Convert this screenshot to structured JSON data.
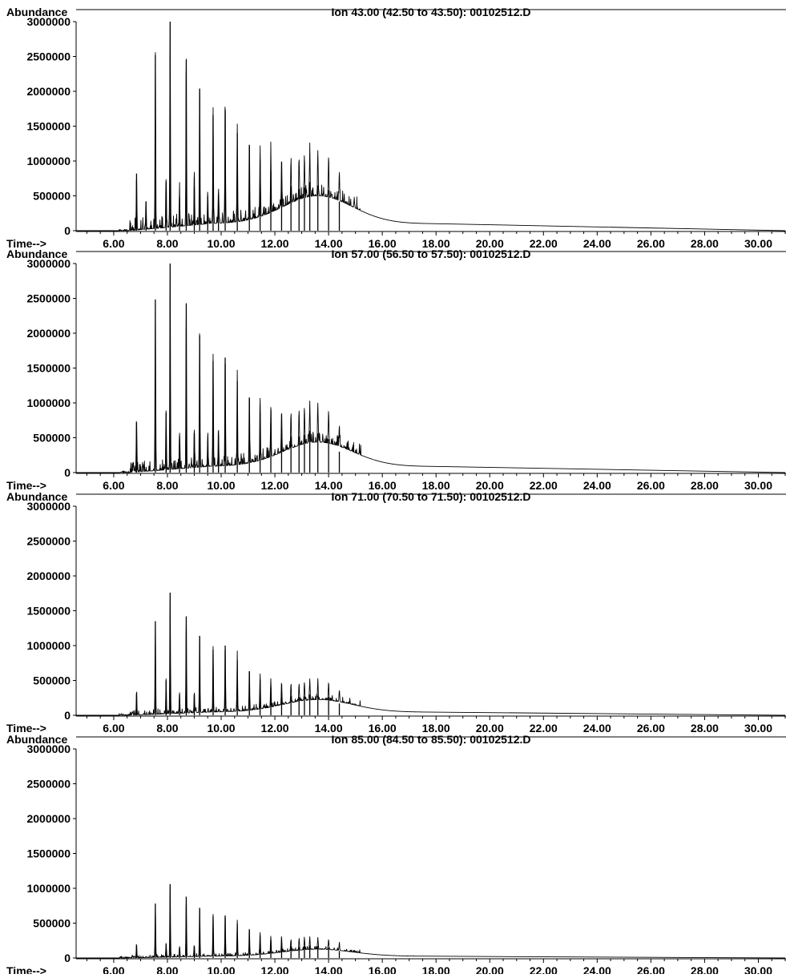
{
  "chart_data": [
    {
      "type": "line",
      "title": "Ion  43.00 (42.50 to 43.50): 00102512.D",
      "ylabel": "Abundance",
      "xlabel": "Time-->",
      "xlim": [
        4.6,
        31.0
      ],
      "ylim": [
        0,
        3000000
      ],
      "x_ticks": [
        "6.00",
        "8.00",
        "10.00",
        "12.00",
        "14.00",
        "16.00",
        "18.00",
        "20.00",
        "22.00",
        "24.00",
        "26.00",
        "28.00",
        "30.00"
      ],
      "y_ticks": [
        "0",
        "500000",
        "1000000",
        "1500000",
        "2000000",
        "2500000",
        "3000000"
      ],
      "peak_scale": 1.0,
      "peaks": [
        [
          6.85,
          820000
        ],
        [
          7.2,
          420000
        ],
        [
          7.55,
          2520000
        ],
        [
          7.95,
          700000
        ],
        [
          8.1,
          3000000
        ],
        [
          8.45,
          480000
        ],
        [
          8.7,
          2450000
        ],
        [
          9.0,
          620000
        ],
        [
          9.2,
          2040000
        ],
        [
          9.5,
          480000
        ],
        [
          9.7,
          1660000
        ],
        [
          9.9,
          500000
        ],
        [
          10.15,
          1740000
        ],
        [
          10.6,
          1400000
        ],
        [
          11.05,
          1210000
        ],
        [
          11.45,
          1020000
        ],
        [
          11.85,
          860000
        ],
        [
          12.25,
          740000
        ],
        [
          12.6,
          640000
        ],
        [
          12.9,
          600000
        ],
        [
          13.1,
          620000
        ],
        [
          13.3,
          700000
        ],
        [
          13.6,
          650000
        ],
        [
          14.0,
          580000
        ],
        [
          14.4,
          420000
        ]
      ],
      "baseline": {
        "center": 13.6,
        "width": 1.3,
        "height": 400000
      }
    },
    {
      "type": "line",
      "title": "Ion  57.00 (56.50 to 57.50): 00102512.D",
      "ylabel": "Abundance",
      "xlabel": "Time-->",
      "xlim": [
        4.6,
        31.0
      ],
      "ylim": [
        0,
        3000000
      ],
      "x_ticks": [
        "6.00",
        "8.00",
        "10.00",
        "12.00",
        "14.00",
        "16.00",
        "18.00",
        "20.00",
        "22.00",
        "24.00",
        "26.00",
        "28.00",
        "30.00"
      ],
      "y_ticks": [
        "0",
        "500000",
        "1000000",
        "1500000",
        "2000000",
        "2500000",
        "3000000"
      ],
      "peak_scale": 1.0,
      "peaks": [
        [
          6.85,
          720000
        ],
        [
          7.55,
          2480000
        ],
        [
          7.95,
          860000
        ],
        [
          8.1,
          3000000
        ],
        [
          8.45,
          520000
        ],
        [
          8.7,
          2430000
        ],
        [
          9.0,
          560000
        ],
        [
          9.2,
          1970000
        ],
        [
          9.5,
          440000
        ],
        [
          9.7,
          1600000
        ],
        [
          9.9,
          540000
        ],
        [
          10.15,
          1650000
        ],
        [
          10.6,
          1310000
        ],
        [
          11.05,
          1060000
        ],
        [
          11.45,
          870000
        ],
        [
          11.85,
          710000
        ],
        [
          12.25,
          620000
        ],
        [
          12.6,
          520000
        ],
        [
          12.9,
          520000
        ],
        [
          13.1,
          540000
        ],
        [
          13.3,
          600000
        ],
        [
          13.6,
          560000
        ],
        [
          14.0,
          480000
        ],
        [
          14.4,
          300000
        ]
      ],
      "baseline": {
        "center": 13.6,
        "width": 1.3,
        "height": 350000
      }
    },
    {
      "type": "line",
      "title": "Ion  71.00 (70.50 to 71.50): 00102512.D",
      "ylabel": "Abundance",
      "xlabel": "Time-->",
      "xlim": [
        4.6,
        31.0
      ],
      "ylim": [
        0,
        3000000
      ],
      "x_ticks": [
        "6.00",
        "8.00",
        "10.00",
        "12.00",
        "14.00",
        "16.00",
        "18.00",
        "20.00",
        "22.00",
        "24.00",
        "26.00",
        "28.00",
        "30.00"
      ],
      "y_ticks": [
        "0",
        "500000",
        "1000000",
        "1500000",
        "2000000",
        "2500000",
        "3000000"
      ],
      "peak_scale": 1.0,
      "peaks": [
        [
          6.85,
          320000
        ],
        [
          7.55,
          1350000
        ],
        [
          7.95,
          500000
        ],
        [
          8.1,
          1760000
        ],
        [
          8.45,
          300000
        ],
        [
          8.7,
          1420000
        ],
        [
          9.0,
          300000
        ],
        [
          9.2,
          1140000
        ],
        [
          9.7,
          940000
        ],
        [
          10.15,
          1000000
        ],
        [
          10.6,
          790000
        ],
        [
          11.05,
          630000
        ],
        [
          11.45,
          510000
        ],
        [
          11.85,
          400000
        ],
        [
          12.25,
          330000
        ],
        [
          12.6,
          280000
        ],
        [
          12.9,
          260000
        ],
        [
          13.1,
          270000
        ],
        [
          13.3,
          300000
        ],
        [
          13.6,
          280000
        ],
        [
          14.0,
          260000
        ],
        [
          14.4,
          170000
        ]
      ],
      "baseline": {
        "center": 13.6,
        "width": 1.3,
        "height": 180000
      }
    },
    {
      "type": "line",
      "title": "Ion  85.00 (84.50 to 85.50): 00102512.D",
      "ylabel": "Abundance",
      "xlabel": "Time-->",
      "xlim": [
        4.6,
        31.0
      ],
      "ylim": [
        0,
        3000000
      ],
      "x_ticks": [
        "6.00",
        "8.00",
        "10.00",
        "12.00",
        "14.00",
        "16.00",
        "18.00",
        "20.00",
        "22.00",
        "24.00",
        "26.00",
        "28.00",
        "30.00"
      ],
      "y_ticks": [
        "0",
        "500000",
        "1000000",
        "1500000",
        "2000000",
        "2500000",
        "3000000"
      ],
      "peak_scale": 1.0,
      "peaks": [
        [
          6.85,
          180000
        ],
        [
          7.55,
          780000
        ],
        [
          7.95,
          200000
        ],
        [
          8.1,
          1060000
        ],
        [
          8.45,
          150000
        ],
        [
          8.7,
          880000
        ],
        [
          9.0,
          160000
        ],
        [
          9.2,
          720000
        ],
        [
          9.7,
          600000
        ],
        [
          10.15,
          610000
        ],
        [
          10.6,
          490000
        ],
        [
          11.05,
          400000
        ],
        [
          11.45,
          320000
        ],
        [
          11.85,
          250000
        ],
        [
          12.25,
          210000
        ],
        [
          12.6,
          170000
        ],
        [
          12.9,
          160000
        ],
        [
          13.1,
          170000
        ],
        [
          13.3,
          180000
        ],
        [
          13.6,
          170000
        ],
        [
          14.0,
          150000
        ],
        [
          14.4,
          100000
        ]
      ],
      "baseline": {
        "center": 13.6,
        "width": 1.3,
        "height": 100000
      }
    }
  ]
}
